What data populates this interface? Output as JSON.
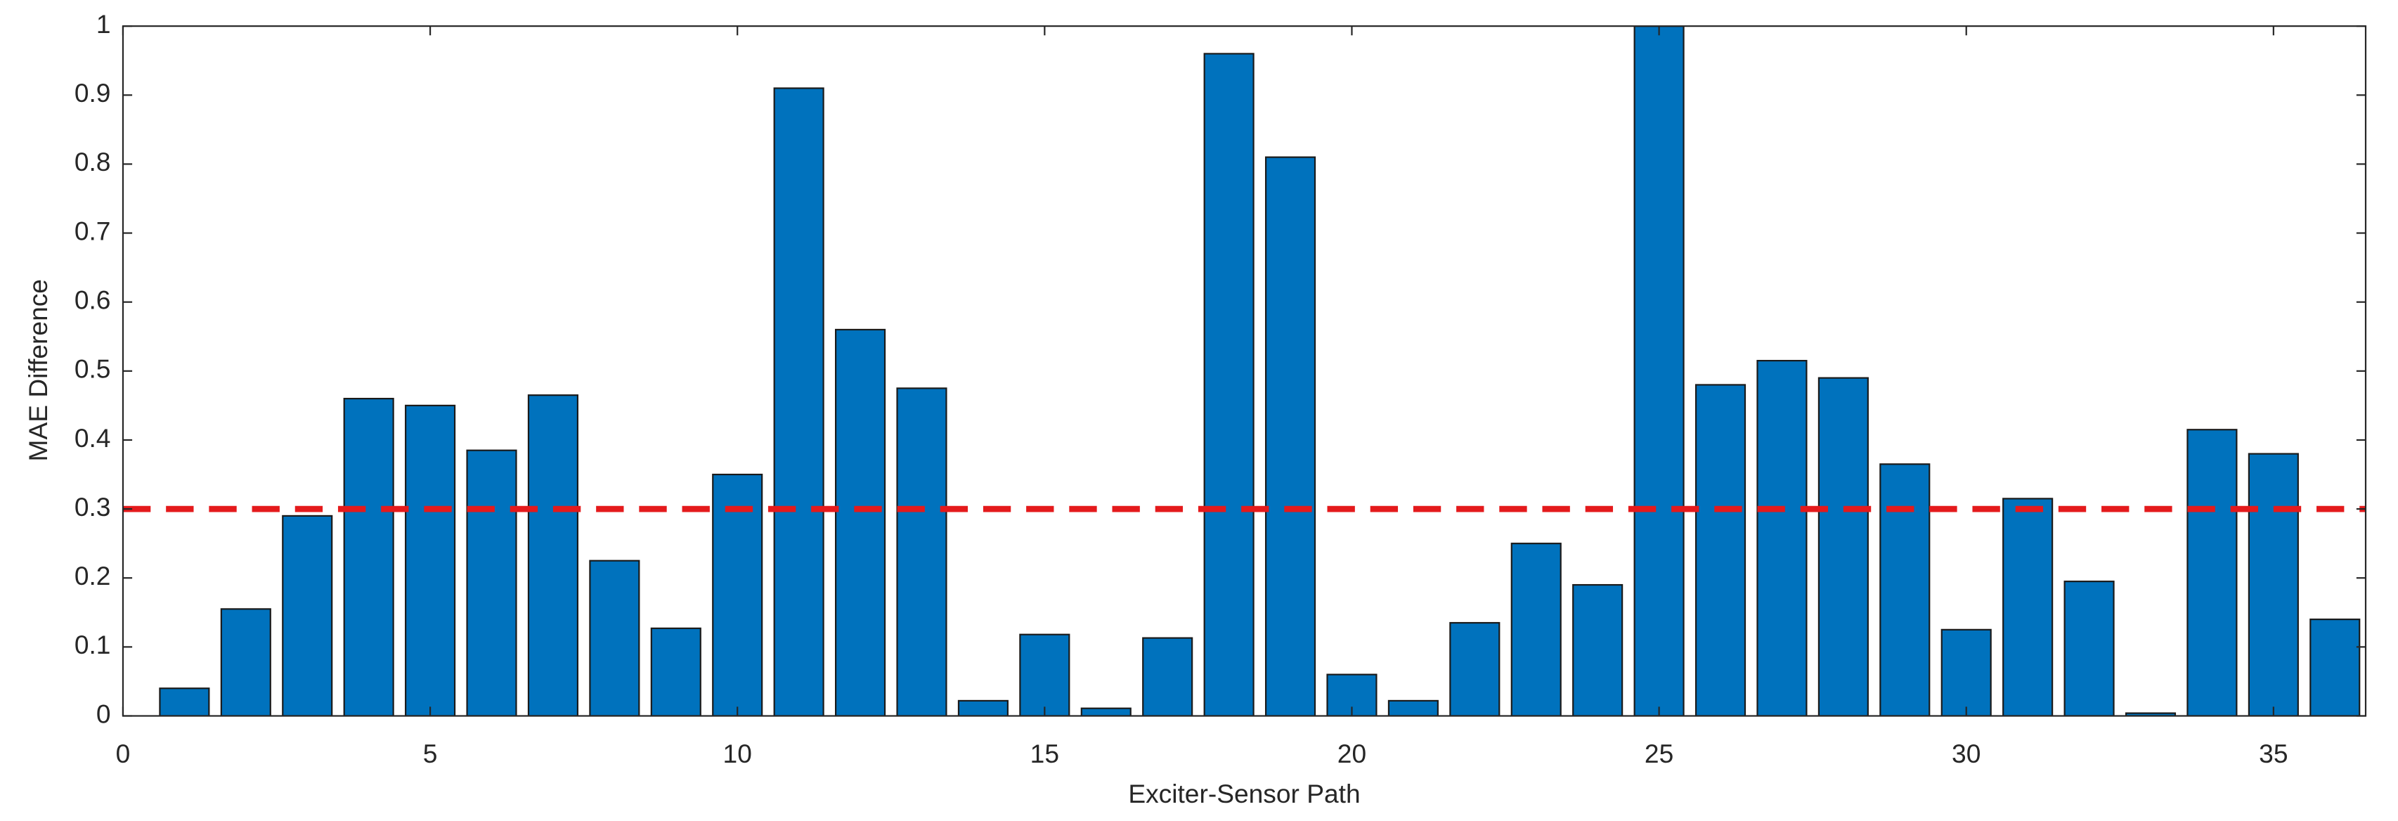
{
  "chart_data": {
    "type": "bar",
    "x_label": "Exciter-Sensor Path",
    "y_label": "MAE Difference",
    "x": [
      1,
      2,
      3,
      4,
      5,
      6,
      7,
      8,
      9,
      10,
      11,
      12,
      13,
      14,
      15,
      16,
      17,
      18,
      19,
      20,
      21,
      22,
      23,
      24,
      25,
      26,
      27,
      28,
      29,
      30,
      31,
      32,
      33,
      34,
      35,
      36
    ],
    "values": [
      0.04,
      0.155,
      0.29,
      0.46,
      0.45,
      0.385,
      0.465,
      0.225,
      0.127,
      0.35,
      0.91,
      0.56,
      0.475,
      0.022,
      0.118,
      0.011,
      0.113,
      0.96,
      0.81,
      0.06,
      0.022,
      0.135,
      0.25,
      0.19,
      1.0,
      0.48,
      0.515,
      0.49,
      0.365,
      0.125,
      0.315,
      0.195,
      0.004,
      0.415,
      0.38,
      0.14
    ],
    "color": "#0072bd",
    "bar_width": 0.8,
    "reference_line": {
      "value": 0.3,
      "color": "#e41a1c"
    },
    "xlim": [
      0,
      36.5
    ],
    "xticks": [
      0,
      5,
      10,
      15,
      20,
      25,
      30,
      35
    ],
    "ylim": [
      0,
      1
    ],
    "yticks": [
      0,
      0.1,
      0.2,
      0.3,
      0.4,
      0.5,
      0.6,
      0.7,
      0.8,
      0.9,
      1
    ]
  }
}
